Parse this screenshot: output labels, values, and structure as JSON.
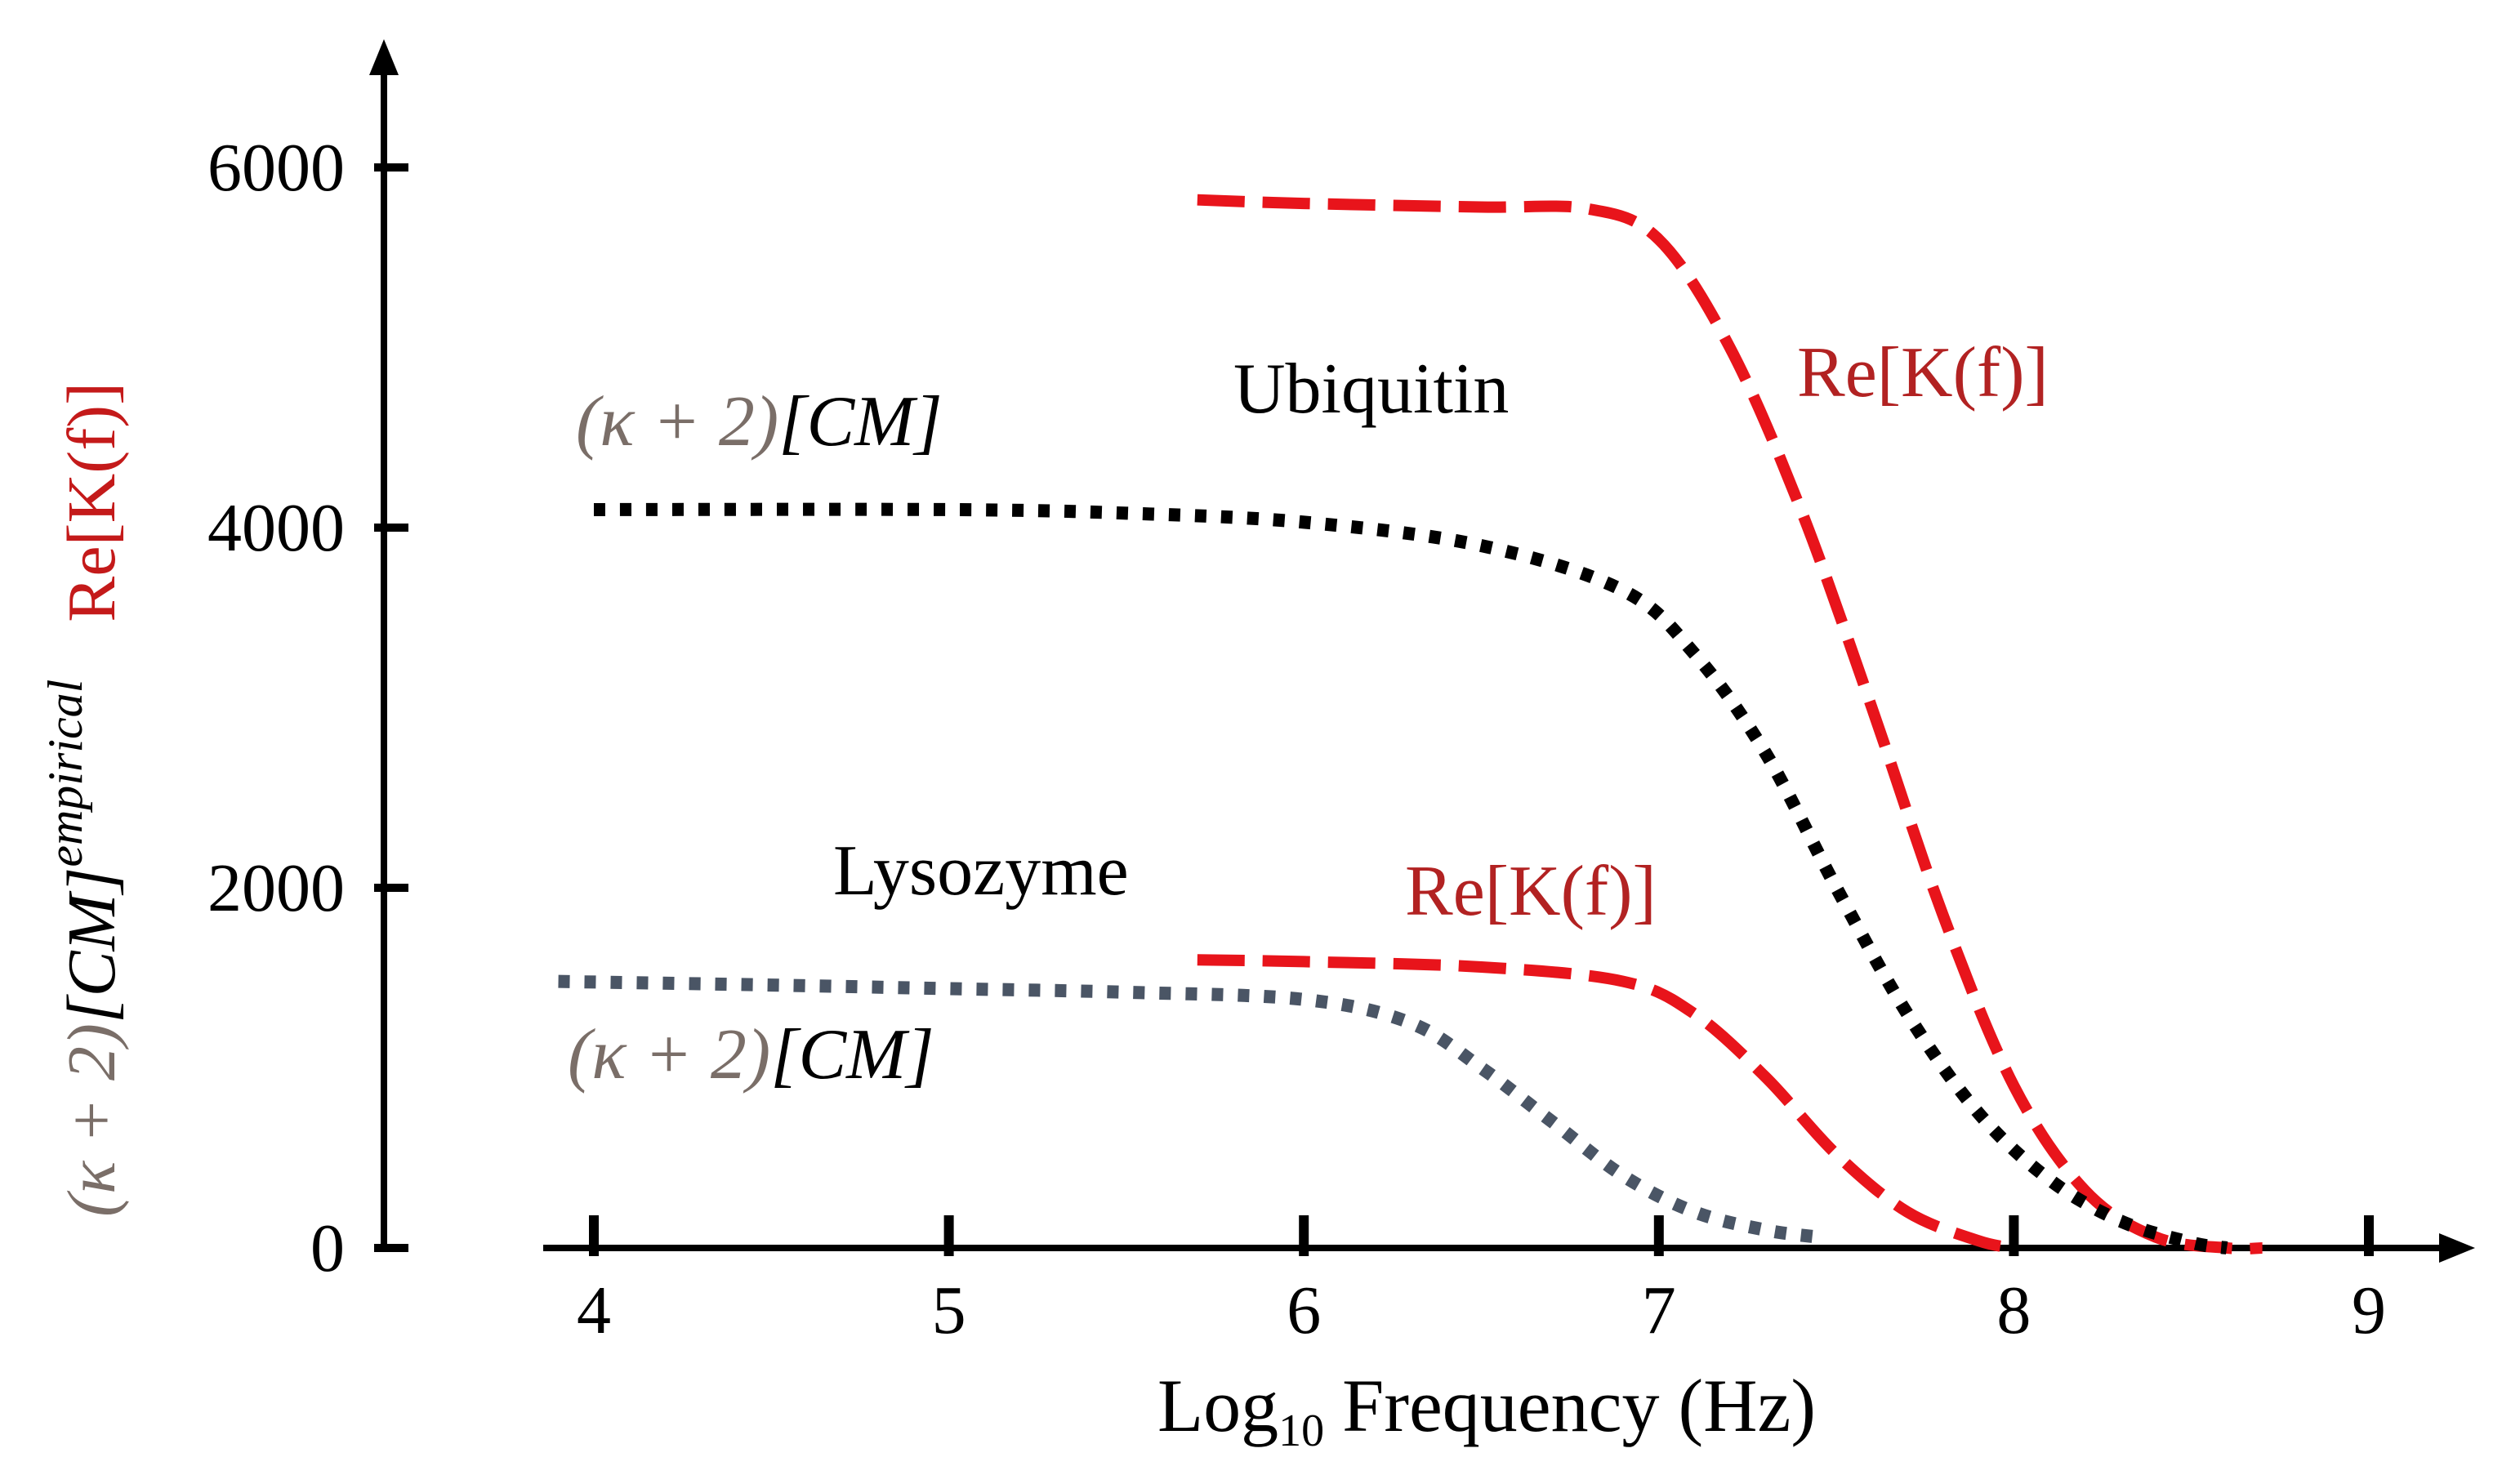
{
  "chart_data": {
    "type": "line",
    "xlabel": {
      "base": "Log",
      "sub": "10",
      "rest": "Frequency  (Hz)"
    },
    "ylabel": {
      "red_part": "Re[K(f)]",
      "black_part_prefix": "(κ + 2)",
      "black_part_rest": "[CM]",
      "superscript": "empirical"
    },
    "xlim": [
      4,
      9
    ],
    "ylim": [
      0,
      6000
    ],
    "x_ticks": [
      "4",
      "5",
      "6",
      "7",
      "8",
      "9"
    ],
    "y_ticks": [
      "0",
      "2000",
      "4000",
      "6000"
    ],
    "y_tick_values": [
      0,
      2000,
      4000,
      6000
    ],
    "grid": false,
    "colors": {
      "re_k": "#e8141b",
      "ubiquitin_cm": "#000000",
      "lysozyme_cm": "#4a5565",
      "kappa": "#7a6e68",
      "annotation_red": "#b22222"
    },
    "series": [
      {
        "name": "Ubiquitin Re[K(f)]",
        "style": "dashed",
        "color": "#e8141b",
        "x": [
          5.7,
          6.0,
          6.5,
          6.8,
          7.0,
          7.2,
          7.4,
          7.6,
          7.8,
          8.0,
          8.2,
          8.4,
          8.6,
          8.7
        ],
        "y": [
          5820,
          5800,
          5780,
          5770,
          5600,
          5000,
          4100,
          3000,
          1850,
          900,
          320,
          60,
          0,
          0
        ]
      },
      {
        "name": "Ubiquitin (κ+2)[CM]",
        "style": "dotted",
        "color": "#000000",
        "x": [
          4.0,
          5.0,
          5.5,
          6.0,
          6.5,
          6.9,
          7.1,
          7.3,
          7.5,
          7.7,
          7.9,
          8.1,
          8.3,
          8.5,
          8.6
        ],
        "y": [
          4100,
          4100,
          4080,
          4030,
          3900,
          3650,
          3300,
          2750,
          2000,
          1300,
          750,
          380,
          150,
          30,
          0
        ]
      },
      {
        "name": "Lysozyme Re[K(f)]",
        "style": "dashed",
        "color": "#e8141b",
        "x": [
          5.7,
          6.0,
          6.5,
          6.9,
          7.1,
          7.3,
          7.5,
          7.7,
          7.9,
          8.0
        ],
        "y": [
          1600,
          1590,
          1560,
          1480,
          1300,
          950,
          520,
          200,
          40,
          0
        ]
      },
      {
        "name": "Lysozyme (κ+2)[CM]",
        "style": "dotted",
        "color": "#4a5565",
        "x": [
          3.9,
          4.5,
          5.0,
          5.5,
          6.0,
          6.3,
          6.5,
          6.7,
          6.9,
          7.1,
          7.3,
          7.45
        ],
        "y": [
          1480,
          1460,
          1440,
          1420,
          1380,
          1250,
          1000,
          700,
          400,
          200,
          100,
          60
        ]
      }
    ],
    "annotations": {
      "ubiquitin": "Ubiquitin",
      "lysozyme": "Lysozyme",
      "re_k_upper": "Re[K(f)]",
      "re_k_lower": "Re[K(f)]",
      "cm_upper": {
        "prefix": "(κ + 2)",
        "rest": "[CM]"
      },
      "cm_lower": {
        "prefix": "(κ + 2)",
        "rest": "[CM]"
      }
    }
  }
}
